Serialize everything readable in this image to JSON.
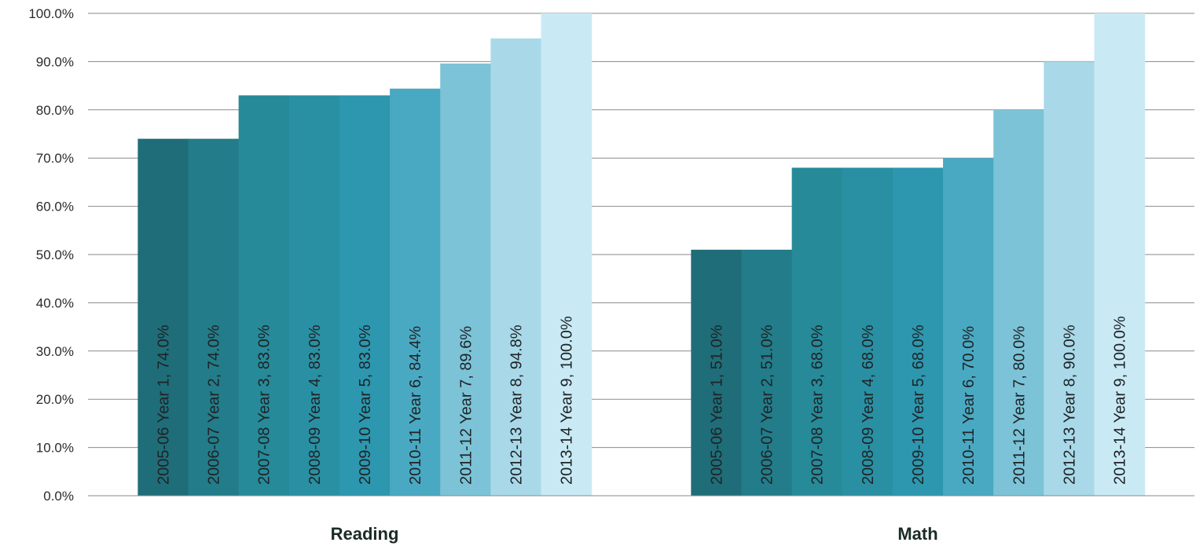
{
  "chart_data": {
    "type": "bar",
    "categories": [
      "Reading",
      "Math"
    ],
    "ylim": [
      0,
      100
    ],
    "y_ticks": [
      "0.0%",
      "10.0%",
      "20.0%",
      "30.0%",
      "40.0%",
      "50.0%",
      "60.0%",
      "70.0%",
      "80.0%",
      "90.0%",
      "100.0%"
    ],
    "grid": true,
    "series": [
      {
        "name": "2005-06 Year 1",
        "color": "#1f6d78",
        "values": [
          74.0,
          51.0
        ],
        "labels": [
          "2005-06 Year 1, 74.0%",
          "2005-06 Year 1, 51.0%"
        ]
      },
      {
        "name": "2006-07 Year 2",
        "color": "#237c89",
        "values": [
          74.0,
          51.0
        ],
        "labels": [
          "2006-07 Year 2, 74.0%",
          "2006-07 Year 2, 51.0%"
        ]
      },
      {
        "name": "2007-08 Year 3",
        "color": "#268a99",
        "values": [
          83.0,
          68.0
        ],
        "labels": [
          "2007-08 Year 3, 83.0%",
          "2007-08 Year 3, 68.0%"
        ]
      },
      {
        "name": "2008-09 Year 4",
        "color": "#2990a3",
        "values": [
          83.0,
          68.0
        ],
        "labels": [
          "2008-09 Year 4, 83.0%",
          "2008-09 Year 4, 68.0%"
        ]
      },
      {
        "name": "2009-10 Year 5",
        "color": "#2c97ae",
        "values": [
          83.0,
          68.0
        ],
        "labels": [
          "2009-10 Year 5, 83.0%",
          "2009-10 Year 5, 68.0%"
        ]
      },
      {
        "name": "2010-11 Year 6",
        "color": "#4aa9c2",
        "values": [
          84.4,
          70.0
        ],
        "labels": [
          "2010-11 Year 6, 84.4%",
          "2010-11 Year 6, 70.0%"
        ]
      },
      {
        "name": "2011-12 Year 7",
        "color": "#7cc3d7",
        "values": [
          89.6,
          80.0
        ],
        "labels": [
          "2011-12 Year 7, 89.6%",
          "2011-12 Year 7, 80.0%"
        ]
      },
      {
        "name": "2012-13 Year 8",
        "color": "#a9d9e8",
        "values": [
          94.8,
          90.0
        ],
        "labels": [
          "2012-13 Year 8, 94.8%",
          "2012-13 Year 8, 90.0%"
        ]
      },
      {
        "name": "2013-14 Year 9",
        "color": "#c9eaf5",
        "values": [
          100.0,
          100.0
        ],
        "labels": [
          "2013-14 Year 9, 100.0%",
          "2013-14 Year 9, 100.0%"
        ]
      }
    ]
  }
}
